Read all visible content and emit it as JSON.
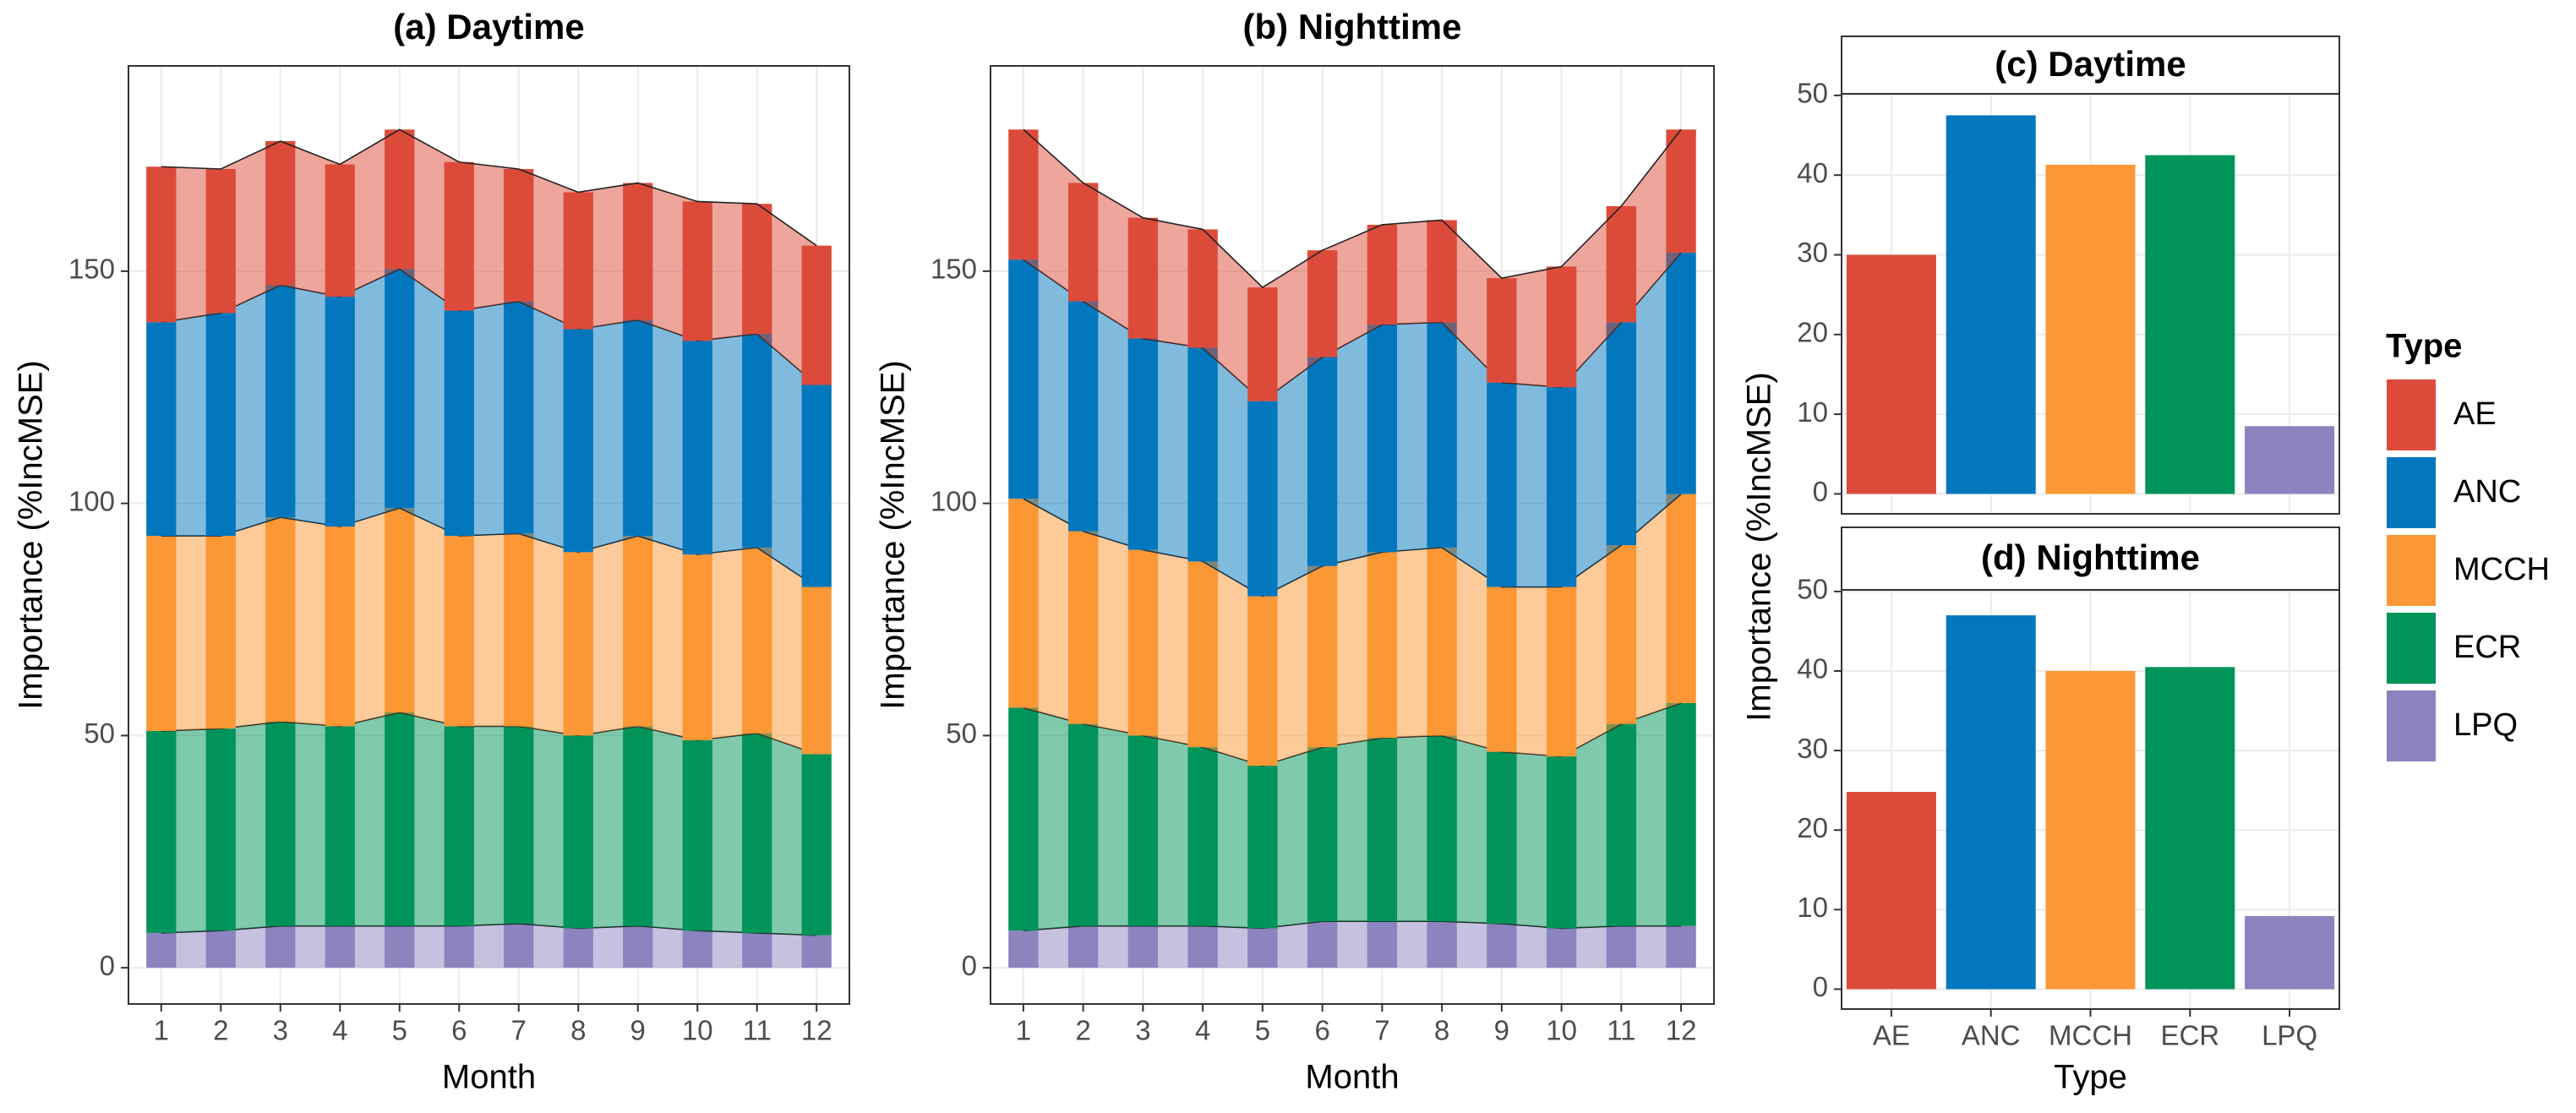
{
  "chart_data": [
    {
      "type": "stacked_area",
      "title": "(a) Daytime",
      "xlabel": "Month",
      "ylabel": "Importance (%IncMSE)",
      "x": [
        1,
        2,
        3,
        4,
        5,
        6,
        7,
        8,
        9,
        10,
        11,
        12
      ],
      "xlim": [
        0.45,
        12.55
      ],
      "xticks": [
        1,
        2,
        3,
        4,
        5,
        6,
        7,
        8,
        9,
        10,
        11,
        12
      ],
      "ylim": [
        -7.8,
        194.2
      ],
      "yticks": [
        0,
        50,
        100,
        150
      ],
      "grid": true,
      "series": [
        {
          "name": "AE",
          "color": "#dc4b3a",
          "values": [
            33.5,
            31,
            31,
            28.5,
            30,
            32,
            28.5,
            29.5,
            29.5,
            30,
            28,
            30
          ]
        },
        {
          "name": "ANC",
          "color": "#0277bd",
          "values": [
            46,
            48,
            50,
            49.5,
            51.5,
            48.5,
            50,
            48,
            46.5,
            46,
            46,
            43.5
          ]
        },
        {
          "name": "MCCH",
          "color": "#fb9735",
          "values": [
            42,
            41.5,
            44,
            43,
            44,
            41,
            41.5,
            39.5,
            41,
            40,
            40,
            36
          ]
        },
        {
          "name": "ECR",
          "color": "#00935a",
          "values": [
            43.5,
            43.5,
            44,
            43,
            46,
            43,
            42.5,
            41.5,
            43,
            41,
            43,
            39
          ]
        },
        {
          "name": "LPQ",
          "color": "#8b84bf",
          "values": [
            7.5,
            8,
            9,
            9,
            9,
            9,
            9.5,
            8.5,
            9,
            8,
            7.5,
            7
          ]
        }
      ]
    },
    {
      "type": "stacked_area",
      "title": "(b) Nighttime",
      "xlabel": "Month",
      "ylabel": "Importance (%IncMSE)",
      "x": [
        1,
        2,
        3,
        4,
        5,
        6,
        7,
        8,
        9,
        10,
        11,
        12
      ],
      "xlim": [
        0.45,
        12.55
      ],
      "xticks": [
        1,
        2,
        3,
        4,
        5,
        6,
        7,
        8,
        9,
        10,
        11,
        12
      ],
      "ylim": [
        -7.8,
        194.2
      ],
      "yticks": [
        0,
        50,
        100,
        150
      ],
      "grid": true,
      "series": [
        {
          "name": "AE",
          "color": "#dc4b3a",
          "values": [
            28,
            25.5,
            26,
            25.5,
            24.5,
            23,
            21.5,
            22,
            22.5,
            26,
            25,
            26.5
          ]
        },
        {
          "name": "ANC",
          "color": "#0277bd",
          "values": [
            51.5,
            49.5,
            45.5,
            46,
            42,
            45,
            49,
            48.5,
            44,
            43,
            48,
            52
          ]
        },
        {
          "name": "MCCH",
          "color": "#fb9735",
          "values": [
            45,
            41.5,
            40,
            40,
            36.5,
            39,
            40,
            40.5,
            35.5,
            36.5,
            38.5,
            45
          ]
        },
        {
          "name": "ECR",
          "color": "#00935a",
          "values": [
            48,
            43.5,
            41,
            38.5,
            35,
            37.5,
            39.5,
            40,
            37,
            37,
            43.5,
            48
          ]
        },
        {
          "name": "LPQ",
          "color": "#8b84bf",
          "values": [
            8,
            9,
            9,
            9,
            8.5,
            10,
            10,
            10,
            9.5,
            8.5,
            9,
            9
          ]
        }
      ]
    },
    {
      "type": "bar",
      "title": "(c) Daytime",
      "ylabel": "Importance (%IncMSE)",
      "categories": [
        "AE",
        "ANC",
        "MCCH",
        "ECR",
        "LPQ"
      ],
      "values": [
        30,
        47.5,
        41.3,
        42.5,
        8.5
      ],
      "colors": [
        "#dc4b3a",
        "#0277bd",
        "#fb9735",
        "#00935a",
        "#8b84bf"
      ],
      "ylim": [
        -2.5,
        50.2
      ],
      "yticks": [
        0,
        10,
        20,
        30,
        40,
        50
      ],
      "grid": true,
      "legend": {
        "title": "Type",
        "position": "right"
      }
    },
    {
      "type": "bar",
      "title": "(d) Nighttime",
      "xlabel": "Type",
      "categories": [
        "AE",
        "ANC",
        "MCCH",
        "ECR",
        "LPQ"
      ],
      "values": [
        24.8,
        47,
        40,
        40.5,
        9.2
      ],
      "colors": [
        "#dc4b3a",
        "#0277bd",
        "#fb9735",
        "#00935a",
        "#8b84bf"
      ],
      "ylim": [
        -2.5,
        50.2
      ],
      "yticks": [
        0,
        10,
        20,
        30,
        40,
        50
      ],
      "grid": true
    }
  ]
}
